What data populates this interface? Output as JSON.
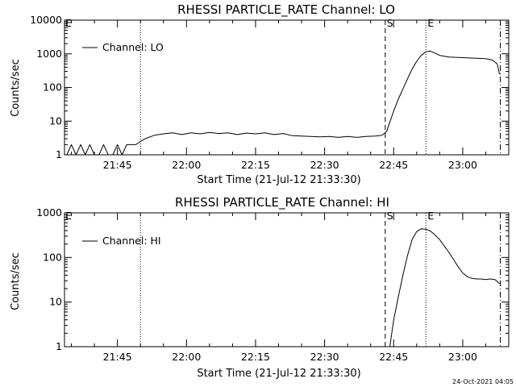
{
  "footer_timestamp": "24-Oct-2021 04:05",
  "markers": {
    "start": "S",
    "end": "E",
    "corner": "E"
  },
  "chart_data": [
    {
      "type": "line",
      "title": "RHESSI PARTICLE_RATE Channel: LO",
      "xlabel": "Start Time (21-Jul-12 21:33:30)",
      "ylabel": "Counts/sec",
      "yscale": "log",
      "ylim": [
        1,
        10000
      ],
      "xlim": [
        "21:33:30",
        "23:10:00"
      ],
      "xtick_labels": [
        "21:45",
        "22:00",
        "22:15",
        "22:30",
        "22:45",
        "23:00"
      ],
      "ytick_labels": [
        "1",
        "10",
        "100",
        "1000",
        "10000"
      ],
      "legend": {
        "label": "Channel: LO",
        "position": "top-left"
      },
      "vlines": [
        {
          "time": "21:50:00",
          "style": "dotted"
        },
        {
          "time": "22:43:10",
          "style": "dashed",
          "label": "S"
        },
        {
          "time": "22:52:00",
          "style": "dotted",
          "label": "E"
        },
        {
          "time": "23:08:10",
          "style": "dashdot"
        }
      ],
      "series": [
        {
          "name": "Channel: LO",
          "x": [
            "21:34:00",
            "21:35:00",
            "21:36:00",
            "21:37:00",
            "21:38:00",
            "21:39:00",
            "21:40:00",
            "21:41:00",
            "21:42:00",
            "21:43:00",
            "21:44:00",
            "21:45:00",
            "21:46:00",
            "21:47:00",
            "21:48:00",
            "21:49:00",
            "21:50:00",
            "21:51:00",
            "21:53:00",
            "21:55:00",
            "21:57:00",
            "21:59:00",
            "22:01:00",
            "22:03:00",
            "22:05:00",
            "22:07:00",
            "22:09:00",
            "22:11:00",
            "22:13:00",
            "22:15:00",
            "22:17:00",
            "22:19:00",
            "22:21:00",
            "22:23:00",
            "22:25:00",
            "22:27:00",
            "22:29:00",
            "22:31:00",
            "22:33:00",
            "22:35:00",
            "22:37:00",
            "22:39:00",
            "22:41:00",
            "22:42:30",
            "22:43:30",
            "22:44:00",
            "22:45:00",
            "22:46:00",
            "22:47:00",
            "22:48:00",
            "22:49:00",
            "22:50:00",
            "22:51:00",
            "22:52:00",
            "22:53:00",
            "22:54:00",
            "22:55:00",
            "22:57:00",
            "22:59:00",
            "23:01:00",
            "23:03:00",
            "23:05:00",
            "23:06:30",
            "23:07:30",
            "23:08:00"
          ],
          "y": [
            1.0,
            2.0,
            1.0,
            2.0,
            1.0,
            2.0,
            1.0,
            1.0,
            2.0,
            1.0,
            1.0,
            2.0,
            1.0,
            2.0,
            2.0,
            2.0,
            2.5,
            3.0,
            3.8,
            4.2,
            4.5,
            4.0,
            4.5,
            4.2,
            4.6,
            4.3,
            4.5,
            4.0,
            4.4,
            4.2,
            4.5,
            4.0,
            4.3,
            3.7,
            3.6,
            3.5,
            3.4,
            3.5,
            3.3,
            3.5,
            3.3,
            3.5,
            3.6,
            3.8,
            5.0,
            8.0,
            20,
            45,
            90,
            180,
            350,
            600,
            900,
            1150,
            1200,
            1050,
            900,
            800,
            780,
            760,
            740,
            720,
            650,
            500,
            250
          ]
        }
      ]
    },
    {
      "type": "line",
      "title": "RHESSI PARTICLE_RATE Channel: HI",
      "xlabel": "Start Time (21-Jul-12 21:33:30)",
      "ylabel": "Counts/sec",
      "yscale": "log",
      "ylim": [
        1,
        1000
      ],
      "xlim": [
        "21:33:30",
        "23:10:00"
      ],
      "xtick_labels": [
        "21:45",
        "22:00",
        "22:15",
        "22:30",
        "22:45",
        "23:00"
      ],
      "ytick_labels": [
        "1",
        "10",
        "100",
        "1000"
      ],
      "legend": {
        "label": "Channel: HI",
        "position": "top-left"
      },
      "vlines": [
        {
          "time": "21:50:00",
          "style": "dotted"
        },
        {
          "time": "22:43:10",
          "style": "dashed",
          "label": "S"
        },
        {
          "time": "22:52:00",
          "style": "dotted",
          "label": "E"
        },
        {
          "time": "23:08:10",
          "style": "dashdot"
        }
      ],
      "series": [
        {
          "name": "Channel: HI",
          "x": [
            "22:44:10",
            "22:45:00",
            "22:46:00",
            "22:47:00",
            "22:48:00",
            "22:49:00",
            "22:50:00",
            "22:51:00",
            "22:52:00",
            "22:53:00",
            "22:54:00",
            "22:55:00",
            "22:56:00",
            "22:57:00",
            "22:58:00",
            "22:59:00",
            "23:00:00",
            "23:01:00",
            "23:02:00",
            "23:03:00",
            "23:04:00",
            "23:05:00",
            "23:06:00",
            "23:07:00",
            "23:08:00"
          ],
          "y": [
            1.0,
            4.0,
            13,
            40,
            110,
            250,
            380,
            440,
            430,
            390,
            320,
            250,
            180,
            130,
            90,
            62,
            45,
            37,
            34,
            33,
            33,
            32,
            33,
            32,
            26
          ]
        }
      ]
    }
  ]
}
